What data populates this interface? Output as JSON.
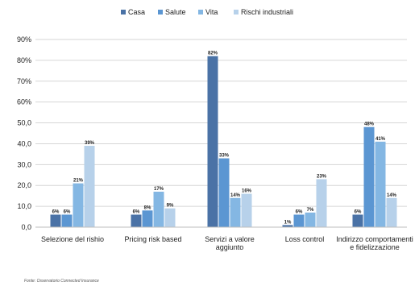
{
  "chart_data": {
    "type": "bar",
    "categories": [
      "Selezione del rishio",
      "Pricing risk based",
      "Servizi a valore aggiunto",
      "Loss control",
      "Indirizzo comportamenti e fidelizzazione"
    ],
    "series": [
      {
        "name": "Casa",
        "color": "#4a72a6",
        "values": [
          6,
          6,
          82,
          1,
          6
        ]
      },
      {
        "name": "Salute",
        "color": "#5b96d2",
        "values": [
          6,
          8,
          33,
          6,
          48
        ]
      },
      {
        "name": "Vita",
        "color": "#84b7e3",
        "values": [
          21,
          17,
          14,
          7,
          41
        ]
      },
      {
        "name": "Rischi industriali",
        "color": "#b7d1ea",
        "values": [
          39,
          9,
          16,
          23,
          14
        ]
      }
    ],
    "data_labels": [
      [
        "6%",
        "6%",
        "21%",
        "39%"
      ],
      [
        "6%",
        "8%",
        "17%",
        "9%"
      ],
      [
        "82%",
        "33%",
        "14%",
        "16%"
      ],
      [
        "1%",
        "6%",
        "7%",
        "23%"
      ],
      [
        "6%",
        "48%",
        "41%",
        "14%"
      ]
    ],
    "yticks": [
      "0,0",
      "10,0",
      "20,0",
      "30,0",
      "40,0",
      "50,0",
      "60%",
      "70%",
      "80%",
      "90%"
    ],
    "ylim": [
      0,
      90
    ],
    "title": "",
    "xlabel": "",
    "ylabel": "",
    "legend_position": "top-center",
    "grid": true
  },
  "footnote": "Fonte: Osservatorio Connected Insurance"
}
